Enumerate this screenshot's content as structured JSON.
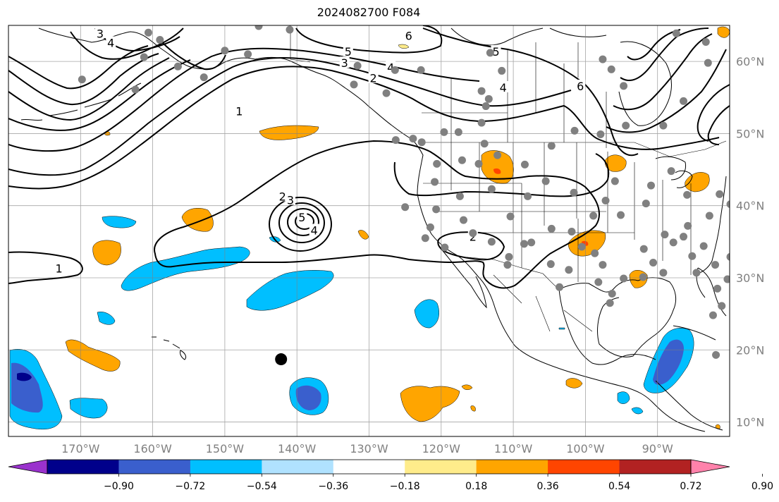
{
  "title": "2024082700 F084",
  "map": {
    "projection": "PlateCarree",
    "extent": {
      "lon_min": -180,
      "lon_max": -80,
      "lat_min": 8,
      "lat_max": 65
    },
    "grid_lons": [
      -170,
      -160,
      -150,
      -140,
      -130,
      -120,
      -110,
      -100,
      -90
    ],
    "grid_lats": [
      10,
      20,
      30,
      40,
      50,
      60
    ],
    "lon_labels": [
      "170°W",
      "160°W",
      "150°W",
      "140°W",
      "130°W",
      "120°W",
      "110°W",
      "100°W",
      "90°W"
    ],
    "lat_labels": [
      "10°N",
      "20°N",
      "30°N",
      "40°N",
      "50°N",
      "60°N"
    ]
  },
  "colorbar": {
    "colors": [
      "#9a32cd",
      "#00008b",
      "#3a5fcd",
      "#00bfff",
      "#b0e2ff",
      "#ffffff",
      "#ffec8b",
      "#ffa500",
      "#ff4500",
      "#b22222",
      "#ff82ab"
    ],
    "tick_labels": [
      "−0.90",
      "−0.72",
      "−0.54",
      "−0.36",
      "−0.18",
      "0.18",
      "0.36",
      "0.54",
      "0.72",
      "0.90"
    ]
  },
  "contour_labels": [
    {
      "text": "1",
      "lon": -173,
      "lat": 31.2
    },
    {
      "text": "1",
      "lon": -148,
      "lat": 53
    },
    {
      "text": "2",
      "lon": -115.6,
      "lat": 35.6
    },
    {
      "text": "2",
      "lon": -129.4,
      "lat": 57.6
    },
    {
      "text": "2",
      "lon": -142,
      "lat": 41.2
    },
    {
      "text": "3",
      "lon": -140.9,
      "lat": 40.7
    },
    {
      "text": "3",
      "lon": -133.4,
      "lat": 59.7
    },
    {
      "text": "4",
      "lon": -137.6,
      "lat": 36.5
    },
    {
      "text": "4",
      "lon": -127,
      "lat": 59.1
    },
    {
      "text": "5",
      "lon": -132.9,
      "lat": 61.3
    },
    {
      "text": "5",
      "lon": -139.3,
      "lat": 38.3
    },
    {
      "text": "3",
      "lon": -167.3,
      "lat": 63.8
    },
    {
      "text": "4",
      "lon": -165.8,
      "lat": 62.5
    },
    {
      "text": "6",
      "lon": -124.5,
      "lat": 63.5
    },
    {
      "text": "6",
      "lon": -100.7,
      "lat": 56.5
    },
    {
      "text": "5",
      "lon": -112.4,
      "lat": 61.3
    },
    {
      "text": "4",
      "lon": -111.4,
      "lat": 56.3
    }
  ],
  "stations": [
    [
      -169.8,
      57.5
    ],
    [
      -160.6,
      64
    ],
    [
      -159,
      63
    ],
    [
      -161.2,
      60.6
    ],
    [
      -156.5,
      59.3
    ],
    [
      -162.4,
      56.1
    ],
    [
      -146.8,
      61
    ],
    [
      -150,
      61.5
    ],
    [
      -152.9,
      57.8
    ],
    [
      -145.3,
      64.9
    ],
    [
      -141,
      64.4
    ],
    [
      -131.6,
      59.4
    ],
    [
      -126.4,
      58.8
    ],
    [
      -132.1,
      56.8
    ],
    [
      -127.6,
      55.6
    ],
    [
      -122.8,
      58.8
    ],
    [
      -113.2,
      61.2
    ],
    [
      -111.6,
      58.7
    ],
    [
      -114.4,
      55.9
    ],
    [
      -113.8,
      53.8
    ],
    [
      -113.4,
      54.8
    ],
    [
      -114.4,
      51.5
    ],
    [
      -117.6,
      50.2
    ],
    [
      -119.6,
      50.2
    ],
    [
      -114,
      48.6
    ],
    [
      -123.9,
      49.3
    ],
    [
      -126.3,
      49.1
    ],
    [
      -122.7,
      48.8
    ],
    [
      -120.6,
      45.8
    ],
    [
      -117.1,
      46.3
    ],
    [
      -112.2,
      47
    ],
    [
      -108.4,
      45.7
    ],
    [
      -104.7,
      48.3
    ],
    [
      -101.5,
      50.4
    ],
    [
      -97.9,
      49.9
    ],
    [
      -94.4,
      51.1
    ],
    [
      -89.2,
      51.1
    ],
    [
      -86.4,
      54.5
    ],
    [
      -83.3,
      62.7
    ],
    [
      -97.6,
      60.3
    ],
    [
      -96.4,
      58.9
    ],
    [
      -94.7,
      56.6
    ],
    [
      -87.4,
      63.9
    ],
    [
      -83,
      59.8
    ],
    [
      -78.4,
      51.7
    ],
    [
      -120.9,
      43.3
    ],
    [
      -114.8,
      45.8
    ],
    [
      -113,
      42.3
    ],
    [
      -116.9,
      38
    ],
    [
      -120.7,
      39.5
    ],
    [
      -125,
      39.8
    ],
    [
      -122.2,
      35.5
    ],
    [
      -119.5,
      34.2
    ],
    [
      -115.6,
      36.2
    ],
    [
      -110.4,
      38.5
    ],
    [
      -108,
      41.3
    ],
    [
      -105.5,
      43.4
    ],
    [
      -101.6,
      41.8
    ],
    [
      -97.2,
      40.7
    ],
    [
      -95.9,
      43.4
    ],
    [
      -91.6,
      40.3
    ],
    [
      -90.9,
      42.8
    ],
    [
      -88.1,
      44.8
    ],
    [
      -85.9,
      41.5
    ],
    [
      -81.4,
      41.6
    ],
    [
      -79.9,
      40.2
    ],
    [
      -82.8,
      38.6
    ],
    [
      -85.8,
      37.2
    ],
    [
      -89,
      36
    ],
    [
      -91.9,
      34
    ],
    [
      -95.1,
      38.7
    ],
    [
      -98.9,
      38.6
    ],
    [
      -101.9,
      36.4
    ],
    [
      -104.7,
      36.8
    ],
    [
      -107.5,
      34.9
    ],
    [
      -110.6,
      32.9
    ],
    [
      -108.5,
      34.7
    ],
    [
      -113,
      35
    ],
    [
      -104.8,
      31.9
    ],
    [
      -102.3,
      31.1
    ],
    [
      -97.6,
      31.8
    ],
    [
      -98.2,
      29.4
    ],
    [
      -94.7,
      29.9
    ],
    [
      -90.6,
      32.1
    ],
    [
      -87.8,
      34.9
    ],
    [
      -85.2,
      33
    ],
    [
      -84.6,
      30.7
    ],
    [
      -81.7,
      28.5
    ],
    [
      -81.1,
      26.1
    ],
    [
      -86.4,
      35.7
    ],
    [
      -83.6,
      34.4
    ],
    [
      -96.3,
      27.8
    ],
    [
      -96.6,
      26.5
    ],
    [
      -98.7,
      33.4
    ],
    [
      -100.5,
      34.3
    ],
    [
      -110.8,
      31.8
    ],
    [
      -121.5,
      37
    ],
    [
      -117.4,
      41.3
    ],
    [
      -92,
      30.1
    ],
    [
      -89.2,
      30.7
    ],
    [
      -82,
      31.8
    ],
    [
      -80.3,
      29.8
    ],
    [
      -79.9,
      32.9
    ],
    [
      -82.3,
      24.8
    ],
    [
      -81.9,
      19.3
    ],
    [
      -103.6,
      28.7
    ]
  ],
  "black_marker": {
    "lon": -142.2,
    "lat": 18.7
  }
}
